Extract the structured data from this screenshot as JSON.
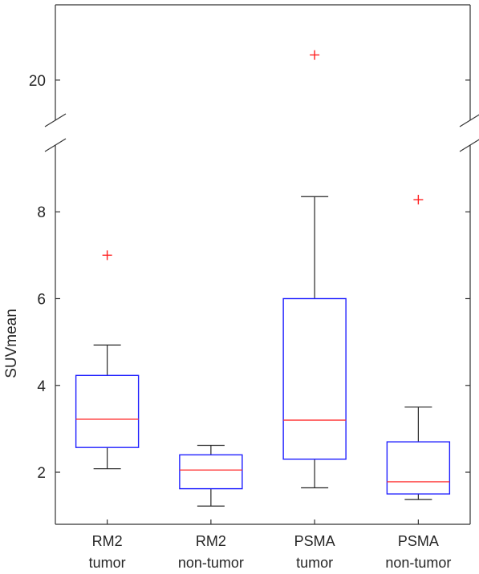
{
  "chart_data": {
    "type": "box",
    "ylabel": "SUVmean",
    "categories": [
      {
        "line1": "RM2",
        "line2": "tumor"
      },
      {
        "line1": "RM2",
        "line2": "non-tumor"
      },
      {
        "line1": "PSMA",
        "line2": "tumor"
      },
      {
        "line1": "PSMA",
        "line2": "non-tumor"
      }
    ],
    "boxes": [
      {
        "whisker_low": 2.08,
        "q1": 2.57,
        "median": 3.22,
        "q3": 4.23,
        "whisker_high": 4.93,
        "outliers": [
          7.0
        ]
      },
      {
        "whisker_low": 1.22,
        "q1": 1.62,
        "median": 2.05,
        "q3": 2.4,
        "whisker_high": 2.62,
        "outliers": []
      },
      {
        "whisker_low": 1.64,
        "q1": 2.3,
        "median": 3.2,
        "q3": 6.0,
        "whisker_high": 8.35,
        "outliers": [
          21.0
        ]
      },
      {
        "whisker_low": 1.37,
        "q1": 1.5,
        "median": 1.78,
        "q3": 2.7,
        "whisker_high": 3.5,
        "outliers": [
          8.28
        ]
      }
    ],
    "y_axis": {
      "lower_segment": {
        "range": [
          0.8,
          9.5
        ],
        "ticks": [
          2,
          4,
          6,
          8
        ]
      },
      "upper_segment": {
        "range": [
          18.4,
          23.0
        ],
        "ticks": [
          20
        ]
      },
      "broken": true
    },
    "tick_labels": [
      "2",
      "4",
      "6",
      "8",
      "20"
    ],
    "grid": false,
    "legend": "none",
    "colors": {
      "box": "#1f1fff",
      "median": "#ff3333",
      "outlier": "#ff2020",
      "whisker": "#262626",
      "axis": "#333333"
    }
  }
}
